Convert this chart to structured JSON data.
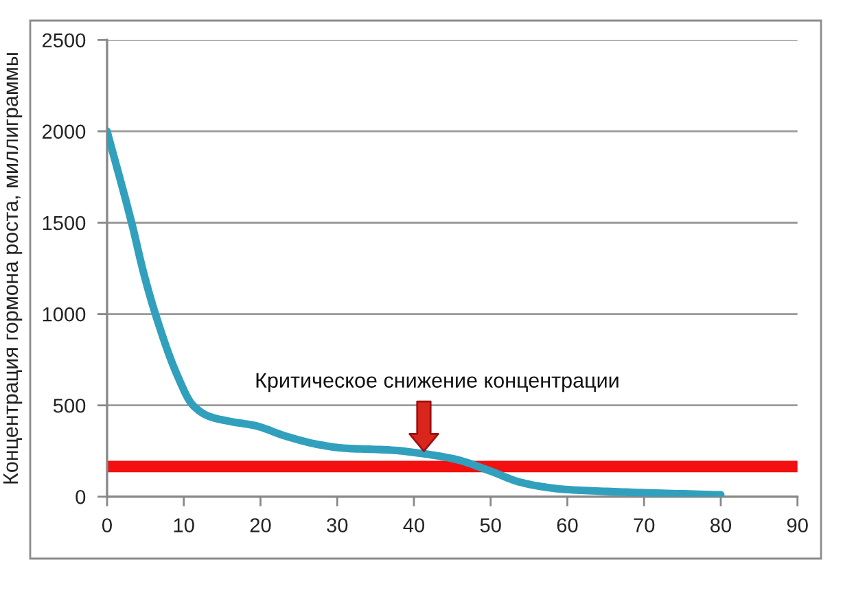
{
  "chart_data": {
    "type": "line",
    "ylabel": "Концентрация гормона роста, миллиграммы",
    "x": [
      0,
      3.2,
      4.8,
      6.3,
      9.1,
      11.2,
      13.3,
      16.3,
      19.2,
      23.4,
      27.6,
      31.1,
      37.1,
      41.3,
      45.4,
      50,
      53.8,
      56.7,
      59.7,
      65.7,
      71.6,
      80
    ],
    "series": [
      {
        "color": "#31a0bd",
        "values": [
          2000,
          1500,
          1220,
          1000,
          670,
          500,
          440,
          410,
          390,
          330,
          285,
          265,
          255,
          235,
          205,
          140,
          80,
          55,
          40,
          28,
          20,
          10
        ]
      }
    ],
    "xlim": [
      0,
      90
    ],
    "ylim": [
      0,
      2500
    ],
    "xticks": [
      0,
      10,
      20,
      30,
      40,
      50,
      60,
      70,
      80,
      90
    ],
    "yticks": [
      0,
      500,
      1000,
      1500,
      2000,
      2500
    ],
    "grid": "y",
    "ref_lines": [
      {
        "axis": "y",
        "value": 165,
        "color": "#f21010"
      }
    ],
    "annotations": [
      {
        "text": "Критическое снижение концентрации",
        "x": 41.3,
        "y": 250
      }
    ]
  }
}
